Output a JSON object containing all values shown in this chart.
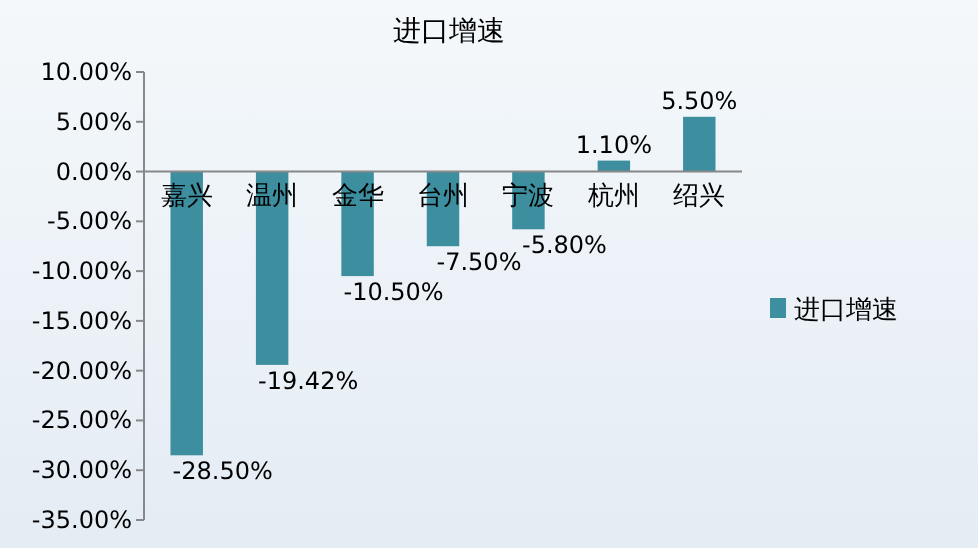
{
  "chart_data": {
    "type": "bar",
    "title": "进口增速",
    "categories": [
      "嘉兴",
      "温州",
      "金华",
      "台州",
      "宁波",
      "杭州",
      "绍兴"
    ],
    "series": [
      {
        "name": "进口增速",
        "color": "#3d8fa0",
        "values": [
          -28.5,
          -19.42,
          -10.5,
          -7.5,
          -5.8,
          1.1,
          5.5
        ],
        "value_labels": [
          "-28.50%",
          "-19.42%",
          "-10.50%",
          "-7.50%",
          "-5.80%",
          "1.10%",
          "5.50%"
        ]
      }
    ],
    "ylim": [
      -35,
      10
    ],
    "yticks": [
      {
        "value": 10,
        "label": "10.00%"
      },
      {
        "value": 5,
        "label": "5.00%"
      },
      {
        "value": 0,
        "label": "0.00%"
      },
      {
        "value": -5,
        "label": "-5.00%"
      },
      {
        "value": -10,
        "label": "-10.00%"
      },
      {
        "value": -15,
        "label": "-15.00%"
      },
      {
        "value": -20,
        "label": "-20.00%"
      },
      {
        "value": -25,
        "label": "-25.00%"
      },
      {
        "value": -30,
        "label": "-30.00%"
      },
      {
        "value": -35,
        "label": "-35.00%"
      }
    ],
    "legend": "right",
    "grid": false
  }
}
